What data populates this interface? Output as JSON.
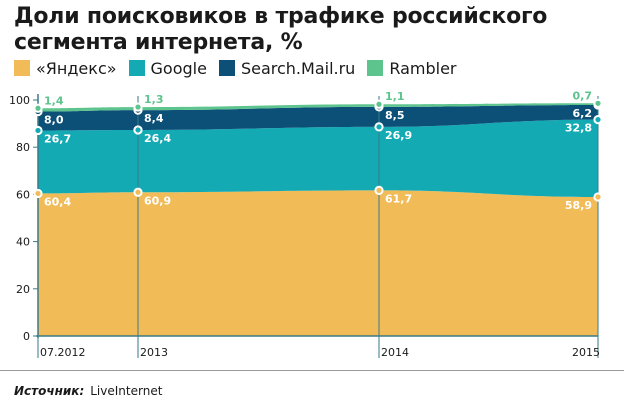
{
  "title": "Доли поисковиков в трафике российского сегмента интернета, %",
  "source_label": "Источник:",
  "source_value": "LiveInternet",
  "chart_data": {
    "type": "area",
    "stacked": true,
    "x": [
      "07.2012",
      "2013",
      "2014",
      "2015"
    ],
    "x_ticks": [
      "07.2012",
      "2013",
      "2014",
      "2015"
    ],
    "ylim": [
      0,
      100
    ],
    "y_ticks": [
      0,
      20,
      40,
      60,
      80,
      100
    ],
    "grid": false,
    "legend_position": "top",
    "series": [
      {
        "name": "«Яндекс»",
        "color": "#f1bc58",
        "values": [
          60.4,
          60.9,
          61.7,
          58.9
        ],
        "labels": [
          "60,4",
          "60,9",
          "61,7",
          "58,9"
        ]
      },
      {
        "name": "Google",
        "color": "#14aab4",
        "values": [
          26.7,
          26.4,
          26.9,
          32.8
        ],
        "labels": [
          "26,7",
          "26,4",
          "26,9",
          "32,8"
        ]
      },
      {
        "name": "Search.Mail.ru",
        "color": "#0c5078",
        "values": [
          8.0,
          8.4,
          8.5,
          6.2
        ],
        "labels": [
          "8,0",
          "8,4",
          "8,5",
          "6,2"
        ]
      },
      {
        "name": "Rambler",
        "color": "#5ec48e",
        "values": [
          1.4,
          1.3,
          1.1,
          0.7
        ],
        "labels": [
          "1,4",
          "1,3",
          "1,1",
          "0,7"
        ]
      }
    ]
  }
}
